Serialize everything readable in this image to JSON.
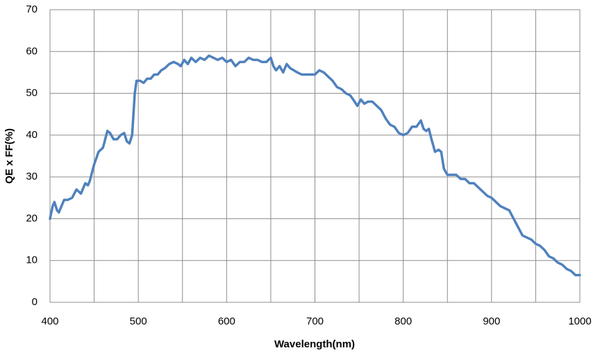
{
  "chart_data": {
    "type": "line",
    "xlabel": "Wavelength(nm)",
    "ylabel": "QE x FF(%)",
    "x": [
      400,
      403,
      405,
      408,
      410,
      413,
      416,
      420,
      425,
      430,
      435,
      440,
      443,
      445,
      450,
      455,
      460,
      465,
      468,
      472,
      476,
      480,
      484,
      487,
      490,
      493,
      496,
      498,
      502,
      506,
      510,
      514,
      518,
      522,
      526,
      530,
      535,
      540,
      545,
      548,
      552,
      556,
      560,
      565,
      570,
      575,
      580,
      585,
      590,
      595,
      600,
      605,
      610,
      615,
      620,
      625,
      630,
      635,
      640,
      645,
      650,
      653,
      656,
      660,
      664,
      668,
      672,
      676,
      680,
      685,
      690,
      695,
      700,
      705,
      710,
      715,
      720,
      725,
      730,
      735,
      740,
      745,
      748,
      752,
      756,
      760,
      765,
      770,
      775,
      780,
      785,
      790,
      795,
      800,
      805,
      810,
      815,
      820,
      823,
      826,
      829,
      832,
      836,
      840,
      843,
      846,
      850,
      855,
      860,
      865,
      870,
      875,
      880,
      885,
      890,
      895,
      900,
      905,
      910,
      915,
      920,
      925,
      930,
      935,
      940,
      945,
      950,
      955,
      960,
      965,
      970,
      975,
      980,
      985,
      990,
      995,
      1000
    ],
    "series": [
      {
        "color": "#4f81bd",
        "values": [
          20,
          23,
          24,
          22,
          21.5,
          23,
          24.5,
          24.5,
          25,
          27,
          26,
          28.5,
          28,
          29,
          33,
          36,
          37,
          41,
          40.5,
          39,
          39,
          40,
          40.5,
          38.5,
          38,
          40,
          50,
          53,
          53,
          52.5,
          53.5,
          53.5,
          54.5,
          54.5,
          55.5,
          56,
          57,
          57.5,
          57,
          56.5,
          58,
          57,
          58.5,
          57.5,
          58.5,
          58,
          59,
          58.5,
          58,
          58.5,
          57.5,
          58,
          56.5,
          57.5,
          57.5,
          58.5,
          58,
          58,
          57.5,
          57.5,
          58.5,
          56.5,
          55.5,
          56.5,
          55,
          57,
          56,
          55.5,
          55,
          54.5,
          54.5,
          54.5,
          54.5,
          55.5,
          55,
          54,
          53,
          51.5,
          51,
          50,
          49.5,
          48,
          47,
          48.5,
          47.5,
          48,
          48,
          47,
          46,
          44,
          42.5,
          42,
          40.5,
          40,
          40.5,
          42,
          42,
          43.5,
          41.5,
          41,
          41.5,
          39,
          36,
          36.5,
          36,
          32,
          30.5,
          30.5,
          30.5,
          29.5,
          29.5,
          28.5,
          28.5,
          27.5,
          26.5,
          25.5,
          25,
          24,
          23,
          22.5,
          22,
          20,
          18,
          16,
          15.5,
          15,
          14,
          13.5,
          12.5,
          11,
          10.5,
          9.5,
          9,
          8,
          7.5,
          6.5,
          6.5
        ]
      }
    ],
    "xlim": [
      400,
      1000
    ],
    "xticks": [
      400,
      500,
      600,
      700,
      800,
      900,
      1000
    ],
    "xminor": [
      450,
      550,
      650,
      750,
      850,
      950
    ],
    "ylim": [
      0,
      70
    ],
    "yticks": [
      0,
      10,
      20,
      30,
      40,
      50,
      60,
      70
    ],
    "grid": true
  }
}
